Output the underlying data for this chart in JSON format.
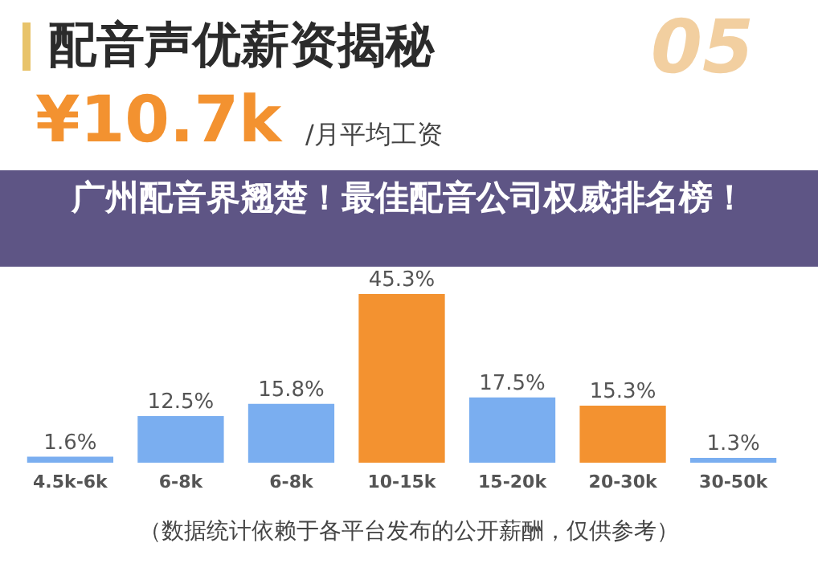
{
  "chart_data": {
    "type": "bar",
    "title": "配音声优薪资揭秘",
    "categories": [
      "4.5k-6k",
      "6-8k",
      "6-8k",
      "10-15k",
      "15-20k",
      "20-30k",
      "30-50k"
    ],
    "values": [
      1.6,
      12.5,
      15.8,
      45.3,
      17.5,
      15.3,
      1.3
    ],
    "colors": [
      "#7aaef0",
      "#7aaef0",
      "#7aaef0",
      "#f39230",
      "#7aaef0",
      "#f39230",
      "#7aaef0"
    ],
    "value_labels": [
      "1.6%",
      "12.5%",
      "15.8%",
      "45.3%",
      "17.5%",
      "15.3%",
      "1.3%"
    ],
    "annotations": [
      "05",
      "¥10.7k",
      "/月平均工资",
      "广州配音界翘楚！最佳配音公司权威排名榜！",
      "（数据统计依赖于各平台发布的公开薪酬，仅供参考）"
    ]
  }
}
